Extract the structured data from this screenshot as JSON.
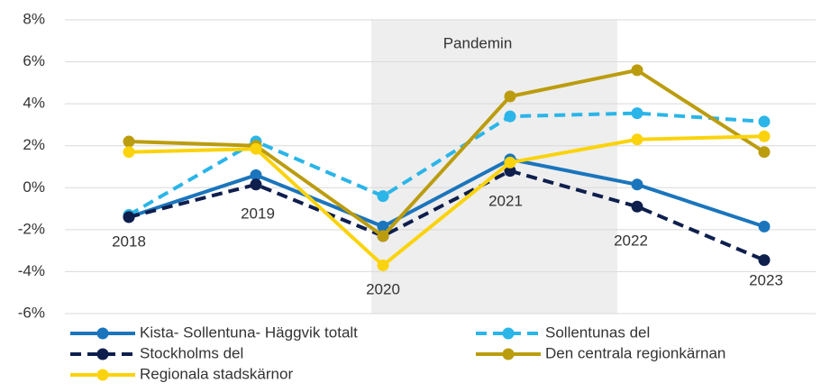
{
  "chart_data": {
    "type": "line",
    "annotation": "Pandemin",
    "categories": [
      "2018",
      "2019",
      "2020",
      "2021",
      "2022",
      "2023"
    ],
    "series": [
      {
        "name": "Kista- Sollentuna- Häggvik totalt",
        "color": "#1b75bc",
        "dashed": false,
        "values": [
          -1.4,
          0.6,
          -1.85,
          1.35,
          0.15,
          -1.85
        ]
      },
      {
        "name": "Sollentunas del",
        "color": "#2bb5e8",
        "dashed": true,
        "values": [
          -1.3,
          2.2,
          -0.4,
          3.4,
          3.55,
          3.15
        ]
      },
      {
        "name": "Stockholms del",
        "color": "#0e1f4d",
        "dashed": true,
        "values": [
          -1.4,
          0.15,
          -2.3,
          0.8,
          -0.9,
          -3.45
        ]
      },
      {
        "name": "Den centrala regionkärnan",
        "color": "#bb9c0e",
        "dashed": false,
        "values": [
          2.2,
          2.0,
          -2.3,
          4.35,
          5.6,
          1.7
        ]
      },
      {
        "name": "Regionala stadskärnor",
        "color": "#fbd30c",
        "dashed": false,
        "values": [
          1.7,
          1.85,
          -3.7,
          1.2,
          2.3,
          2.45
        ]
      }
    ],
    "ylim": [
      -6,
      8
    ],
    "yticks": [
      {
        "value": -6,
        "label": "-6%"
      },
      {
        "value": -4,
        "label": "-4%"
      },
      {
        "value": -2,
        "label": "-2%"
      },
      {
        "value": 0,
        "label": "0%"
      },
      {
        "value": 2,
        "label": "2%"
      },
      {
        "value": 4,
        "label": "4%"
      },
      {
        "value": 6,
        "label": "6%"
      },
      {
        "value": 8,
        "label": "8%"
      }
    ],
    "grid": true
  }
}
